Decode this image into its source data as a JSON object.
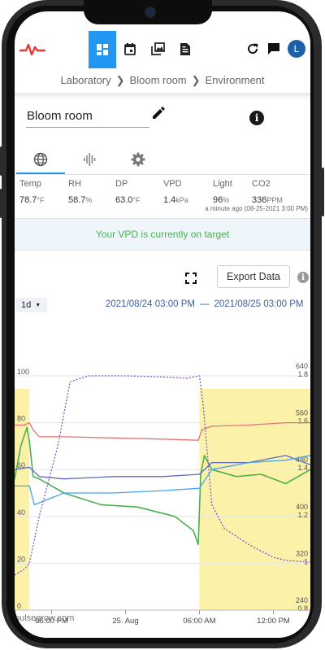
{
  "breadcrumb": [
    "Laboratory",
    "Bloom room",
    "Environment"
  ],
  "device": {
    "name": "Bloom room"
  },
  "nav": {
    "active": "dashboard"
  },
  "user": {
    "initial": "L"
  },
  "readings": [
    {
      "label": "Temp",
      "value": "78.7",
      "unit": "°F"
    },
    {
      "label": "RH",
      "value": "58.7",
      "unit": "%"
    },
    {
      "label": "DP",
      "value": "63.0",
      "unit": "°F"
    },
    {
      "label": "VPD",
      "value": "1.4",
      "unit": "kPa"
    },
    {
      "label": "Light",
      "value": "96",
      "unit": "%"
    },
    {
      "label": "CO2",
      "value": "336",
      "unit": "PPM"
    }
  ],
  "last_updated": "a minute ago (08-25-2021 3:00 PM)",
  "status_message": "Your VPD is currently on target",
  "export_label": "Export Data",
  "range": {
    "selected": "1d",
    "start": "2021/08/24 03:00 PM",
    "separator": "—",
    "end": "2021/08/25 03:00 PM"
  },
  "credit": "pulsegrow.com",
  "colors": {
    "accent": "#2196f3",
    "ok": "#4caf50",
    "temp": "#e57373",
    "rh": "#4caf50",
    "dp": "#5c6bc0",
    "vpd": "#42a5f5",
    "co2": "#7e57c2",
    "lights_on": "#fbf1a9"
  },
  "chart_data": {
    "type": "line",
    "x_ticks": [
      "06:00 PM",
      "25. Aug",
      "06:00 AM",
      "12:00 PM"
    ],
    "x_tick_hours": [
      3,
      9,
      15,
      21
    ],
    "x_range_hours": [
      0,
      24
    ],
    "lights_on_hours": [
      [
        0,
        1.2
      ],
      [
        15,
        24
      ]
    ],
    "y_left": {
      "ticks": [
        "100",
        "80",
        "60",
        "40",
        "20",
        "0"
      ],
      "range": [
        0,
        100
      ]
    },
    "y_right_ticks_outer": [
      "640",
      "560",
      "480",
      "400",
      "320",
      "240"
    ],
    "y_right_ticks_inner": [
      "1.8",
      "1.6",
      "1.4",
      "1.2",
      "1",
      "0.8"
    ],
    "y_right_outer_range": [
      240,
      640
    ],
    "y_right_inner_range": [
      0.8,
      1.8
    ],
    "grid": true,
    "series": [
      {
        "key": "temp",
        "axis": "left",
        "style": "solid",
        "x": [
          0,
          0.8,
          1.2,
          1.5,
          2,
          4,
          8,
          12,
          14.9,
          15.2,
          16,
          19,
          22,
          24
        ],
        "y": [
          79,
          79,
          80,
          77,
          74,
          74,
          73.5,
          73,
          72.5,
          77,
          78.5,
          79,
          80,
          80
        ]
      },
      {
        "key": "rh",
        "axis": "left",
        "style": "solid",
        "x": [
          0,
          0.5,
          1,
          1.2,
          1.5,
          2,
          4,
          7,
          10,
          13,
          14.5,
          14.9,
          15.1,
          15.4,
          16,
          18,
          20,
          22,
          24
        ],
        "y": [
          56,
          70,
          78,
          72,
          57,
          56,
          50,
          45,
          44,
          40,
          34,
          28,
          58,
          66,
          60,
          57,
          58,
          54,
          60
        ]
      },
      {
        "key": "dp",
        "axis": "left",
        "style": "solid",
        "x": [
          0,
          1.2,
          2,
          4,
          8,
          12,
          15,
          16,
          19,
          22,
          24
        ],
        "y": [
          60,
          61,
          57,
          56,
          57,
          57,
          58,
          63,
          63,
          66,
          62
        ]
      },
      {
        "key": "vpd",
        "axis": "right_inner",
        "style": "solid",
        "x": [
          0,
          1.2,
          1.6,
          4,
          8,
          12,
          15,
          16,
          19,
          22,
          24
        ],
        "y": [
          1.33,
          1.33,
          1.25,
          1.3,
          1.3,
          1.31,
          1.32,
          1.4,
          1.43,
          1.44,
          1.46
        ]
      },
      {
        "key": "co2",
        "axis": "right_outer",
        "style": "dashed",
        "x": [
          0,
          0.8,
          1.2,
          2,
          3.5,
          4.5,
          6,
          9,
          12,
          14,
          15,
          15.3,
          16,
          17,
          19,
          21,
          22,
          24
        ],
        "y": [
          300,
          310,
          320,
          400,
          520,
          630,
          640,
          640,
          638,
          636,
          640,
          590,
          420,
          380,
          352,
          330,
          325,
          322
        ]
      }
    ]
  }
}
